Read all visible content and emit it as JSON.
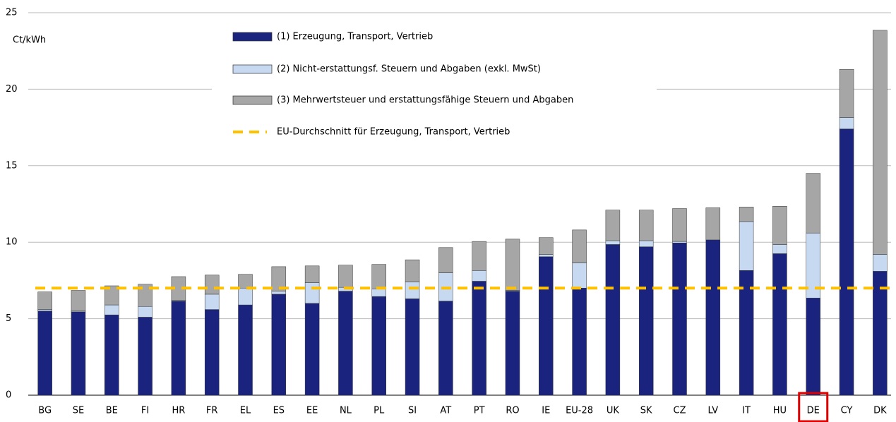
{
  "chart_data": {
    "type": "bar",
    "stacked": true,
    "y_label": "Ct/kWh",
    "categories": [
      "BG",
      "SE",
      "BE",
      "FI",
      "HR",
      "FR",
      "EL",
      "ES",
      "EE",
      "NL",
      "PL",
      "SI",
      "AT",
      "PT",
      "RO",
      "IE",
      "EU-28",
      "UK",
      "SK",
      "CZ",
      "LV",
      "IT",
      "HU",
      "DE",
      "CY",
      "DK"
    ],
    "series": [
      {
        "name": "(1) Erzeugung, Transport, Vertrieb",
        "color": "#1a237e",
        "values": [
          5.5,
          5.45,
          5.25,
          5.1,
          6.15,
          5.6,
          5.9,
          6.6,
          6.0,
          6.8,
          6.45,
          6.3,
          6.15,
          7.45,
          6.8,
          9.05,
          7.0,
          9.85,
          9.7,
          9.95,
          10.15,
          8.15,
          9.25,
          6.35,
          17.4,
          8.1
        ]
      },
      {
        "name": "(2) Nicht-erstattungsf. Steuern und Abgaben (exkl. MwSt)",
        "color": "#c6d9f1",
        "values": [
          0.1,
          0.05,
          0.65,
          0.7,
          0.05,
          1.0,
          1.1,
          0.2,
          1.35,
          0.25,
          0.5,
          1.1,
          1.85,
          0.7,
          0.05,
          0.15,
          1.65,
          0.25,
          0.4,
          0.1,
          0,
          3.2,
          0.6,
          4.25,
          0.75,
          1.1
        ]
      },
      {
        "name": "(3) Mehrwertsteuer und erstattungsfähige Steuern und Abgaben",
        "color": "#a6a6a6",
        "values": [
          1.15,
          1.35,
          1.25,
          1.45,
          1.55,
          1.25,
          0.9,
          1.6,
          1.1,
          1.45,
          1.6,
          1.45,
          1.65,
          1.9,
          3.35,
          1.1,
          2.15,
          2.0,
          2.0,
          2.15,
          2.1,
          0.95,
          2.5,
          3.9,
          3.15,
          14.65
        ]
      }
    ],
    "average": {
      "name": "EU-Durchschnitt für Erzeugung, Transport, Vertrieb",
      "value": 7.0,
      "color": "#ffc000"
    },
    "highlight": [
      23
    ],
    "highlight_color": "#e00000",
    "ylim": [
      0,
      25
    ],
    "yticks": [
      0,
      5,
      10,
      15,
      20,
      25
    ],
    "grid": true
  }
}
